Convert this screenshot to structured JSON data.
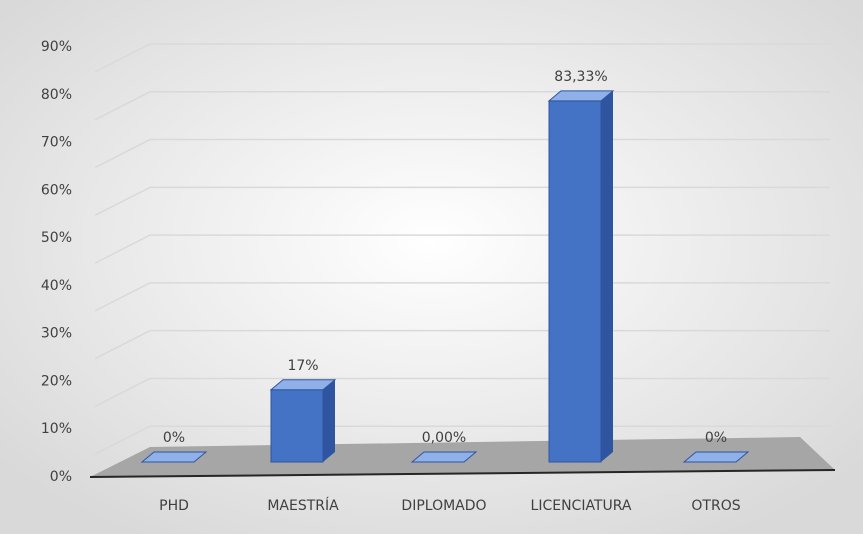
{
  "chart_data": {
    "type": "bar3d",
    "categories": [
      "PHD",
      "MAESTRÍA",
      "DIPLOMADO",
      "LICENCIATURA",
      "OTROS"
    ],
    "values": [
      0,
      16.67,
      0,
      83.33,
      0
    ],
    "value_labels": [
      "0%",
      "17%",
      "0,00%",
      "83,33%",
      "0%"
    ],
    "color": "#4472c4",
    "ylim": [
      0,
      90
    ],
    "yticks": [
      {
        "value": 0,
        "label": "0%"
      },
      {
        "value": 10,
        "label": "10%"
      },
      {
        "value": 20,
        "label": "20%"
      },
      {
        "value": 30,
        "label": "30%"
      },
      {
        "value": 40,
        "label": "40%"
      },
      {
        "value": 50,
        "label": "50%"
      },
      {
        "value": 60,
        "label": "60%"
      },
      {
        "value": 70,
        "label": "70%"
      },
      {
        "value": 80,
        "label": "80%"
      },
      {
        "value": 90,
        "label": "90%"
      }
    ],
    "grid": true
  }
}
